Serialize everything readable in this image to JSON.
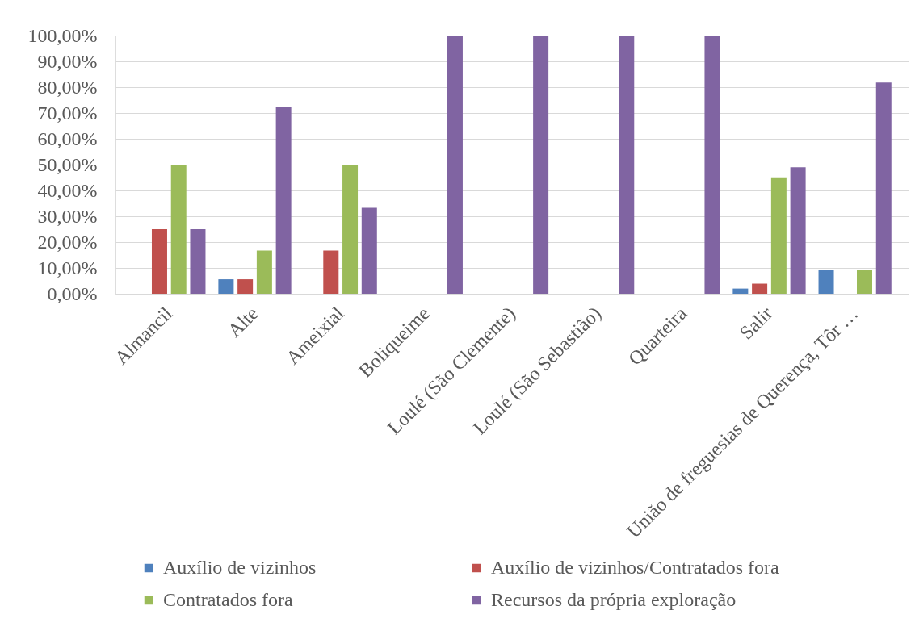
{
  "chart_data": {
    "type": "bar",
    "categories": [
      "Almancil",
      "Alte",
      "Ameixial",
      "Boliqueime",
      "Loulé (São Clemente)",
      "Loulé (São Sebastião)",
      "Quarteira",
      "Salir",
      "União de freguesias de Querença, Tôr …"
    ],
    "series": [
      {
        "name": "Auxílio de vizinhos",
        "color": "#4f81bd",
        "values": [
          null,
          5.6,
          null,
          null,
          null,
          null,
          null,
          2.0,
          9.1
        ]
      },
      {
        "name": "Auxílio de vizinhos/Contratados fora",
        "color": "#c0504d",
        "values": [
          25,
          5.6,
          16.7,
          null,
          null,
          null,
          null,
          3.9,
          null
        ]
      },
      {
        "name": "Contratados fora",
        "color": "#9bbb59",
        "values": [
          50,
          16.7,
          50,
          null,
          null,
          null,
          null,
          45.1,
          9.1
        ]
      },
      {
        "name": "Recursos da própria exploração",
        "color": "#8064a2",
        "values": [
          25,
          72.2,
          33.3,
          100,
          100,
          100,
          100,
          49.0,
          81.8
        ]
      }
    ],
    "ylim": [
      0,
      100
    ],
    "yticks": [
      {
        "value": 0,
        "label": "0,00%"
      },
      {
        "value": 10,
        "label": "10,00%"
      },
      {
        "value": 20,
        "label": "20,00%"
      },
      {
        "value": 30,
        "label": "30,00%"
      },
      {
        "value": 40,
        "label": "40,00%"
      },
      {
        "value": 50,
        "label": "50,00%"
      },
      {
        "value": 60,
        "label": "60,00%"
      },
      {
        "value": 70,
        "label": "70,00%"
      },
      {
        "value": 80,
        "label": "80,00%"
      },
      {
        "value": 90,
        "label": "90,00%"
      },
      {
        "value": 100,
        "label": "100,00%"
      }
    ],
    "grid": "y",
    "legend": "bottom"
  }
}
